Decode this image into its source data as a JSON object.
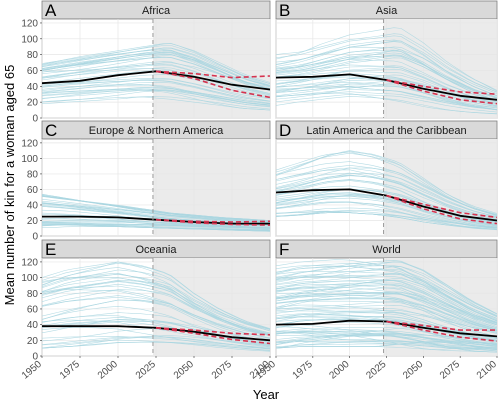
{
  "figure": {
    "ylabel": "Mean number of kin for a woman aged 65",
    "xlabel": "Year"
  },
  "chart_data": {
    "type": "line",
    "xlabel": "Year",
    "ylabel": "Mean number of kin for a woman aged 65",
    "xlim": [
      1950,
      2100
    ],
    "ylim": [
      0,
      125
    ],
    "x_ticks": [
      1950,
      1975,
      2000,
      2025,
      2050,
      2075,
      2100
    ],
    "y_ticks": [
      0,
      20,
      40,
      60,
      80,
      100,
      120
    ],
    "projection_start": 2023,
    "grid": true,
    "colors": {
      "country_lines": "#a9d6e0",
      "mean_line": "#000000",
      "ci_lines": "#d6334f",
      "strip_bg": "#d9d9d9",
      "projection_bg": "#ebebeb",
      "vline": "#9a9a9a"
    },
    "panels": [
      {
        "letter": "A",
        "title": "Africa",
        "country_band": {
          "lo": [
            18,
            20,
            22,
            24,
            26,
            24,
            20,
            16,
            12,
            10
          ],
          "hi": [
            70,
            75,
            80,
            85,
            90,
            95,
            85,
            70,
            55,
            45
          ]
        },
        "country_count": 40,
        "mean": {
          "x": [
            1950,
            1975,
            2000,
            2025,
            2050,
            2075,
            2100
          ],
          "y": [
            44,
            47,
            54,
            59,
            52,
            42,
            36
          ]
        },
        "ci_upper": {
          "x": [
            2025,
            2050,
            2075,
            2100
          ],
          "y": [
            59,
            56,
            51,
            53
          ]
        },
        "ci_lower": {
          "x": [
            2025,
            2050,
            2075,
            2100
          ],
          "y": [
            59,
            50,
            35,
            26
          ]
        }
      },
      {
        "letter": "B",
        "title": "Asia",
        "country_band": {
          "lo": [
            15,
            18,
            20,
            22,
            20,
            18,
            14,
            10,
            7,
            5
          ],
          "hi": [
            80,
            85,
            95,
            105,
            110,
            115,
            95,
            70,
            50,
            35
          ]
        },
        "country_count": 40,
        "mean": {
          "x": [
            1950,
            1975,
            2000,
            2025,
            2050,
            2075,
            2100
          ],
          "y": [
            51,
            52,
            55,
            48,
            37,
            28,
            23
          ]
        },
        "ci_upper": {
          "x": [
            2025,
            2050,
            2075,
            2100
          ],
          "y": [
            48,
            40,
            33,
            30
          ]
        },
        "ci_lower": {
          "x": [
            2025,
            2050,
            2075,
            2100
          ],
          "y": [
            48,
            34,
            23,
            18
          ]
        }
      },
      {
        "letter": "C",
        "title": "Europe & Northern America",
        "country_band": {
          "lo": [
            10,
            12,
            12,
            12,
            11,
            10,
            9,
            8,
            7,
            6
          ],
          "hi": [
            55,
            50,
            45,
            40,
            35,
            30,
            27,
            24,
            22,
            20
          ]
        },
        "country_count": 40,
        "mean": {
          "x": [
            1950,
            1975,
            2000,
            2025,
            2050,
            2075,
            2100
          ],
          "y": [
            25,
            25,
            24,
            21,
            18,
            16,
            16
          ]
        },
        "ci_upper": {
          "x": [
            2025,
            2050,
            2075,
            2100
          ],
          "y": [
            21,
            19,
            18,
            19
          ]
        },
        "ci_lower": {
          "x": [
            2025,
            2050,
            2075,
            2100
          ],
          "y": [
            21,
            17,
            15,
            14
          ]
        }
      },
      {
        "letter": "D",
        "title": "Latin America and the Caribbean",
        "country_band": {
          "lo": [
            25,
            27,
            30,
            30,
            28,
            24,
            18,
            14,
            10,
            8
          ],
          "hi": [
            85,
            95,
            105,
            110,
            105,
            95,
            75,
            55,
            40,
            30
          ]
        },
        "country_count": 40,
        "mean": {
          "x": [
            1950,
            1975,
            2000,
            2025,
            2050,
            2075,
            2100
          ],
          "y": [
            56,
            59,
            60,
            52,
            38,
            26,
            20
          ]
        },
        "ci_upper": {
          "x": [
            2025,
            2050,
            2075,
            2100
          ],
          "y": [
            52,
            41,
            30,
            24
          ]
        },
        "ci_lower": {
          "x": [
            2025,
            2050,
            2075,
            2100
          ],
          "y": [
            52,
            35,
            22,
            16
          ]
        }
      },
      {
        "letter": "E",
        "title": "Oceania",
        "country_band": {
          "lo": [
            10,
            12,
            14,
            15,
            14,
            13,
            12,
            10,
            8,
            6
          ],
          "hi": [
            100,
            110,
            115,
            120,
            115,
            105,
            80,
            60,
            45,
            35
          ]
        },
        "country_count": 40,
        "mean": {
          "x": [
            1950,
            1975,
            2000,
            2025,
            2050,
            2075,
            2100
          ],
          "y": [
            38,
            38,
            38,
            36,
            31,
            24,
            20
          ]
        },
        "ci_upper": {
          "x": [
            2025,
            2050,
            2075,
            2100
          ],
          "y": [
            36,
            33,
            29,
            27
          ]
        },
        "ci_lower": {
          "x": [
            2025,
            2050,
            2075,
            2100
          ],
          "y": [
            36,
            29,
            21,
            16
          ]
        }
      },
      {
        "letter": "F",
        "title": "World",
        "country_band": {
          "lo": [
            10,
            12,
            12,
            12,
            12,
            11,
            9,
            7,
            6,
            5
          ],
          "hi": [
            115,
            120,
            122,
            124,
            124,
            124,
            110,
            90,
            70,
            55
          ]
        },
        "country_count": 80,
        "mean": {
          "x": [
            1950,
            1975,
            2000,
            2025,
            2050,
            2075,
            2100
          ],
          "y": [
            40,
            41,
            45,
            44,
            36,
            29,
            25
          ]
        },
        "ci_upper": {
          "x": [
            2025,
            2050,
            2075,
            2100
          ],
          "y": [
            44,
            39,
            33,
            33
          ]
        },
        "ci_lower": {
          "x": [
            2025,
            2050,
            2075,
            2100
          ],
          "y": [
            44,
            33,
            24,
            19
          ]
        }
      }
    ]
  }
}
